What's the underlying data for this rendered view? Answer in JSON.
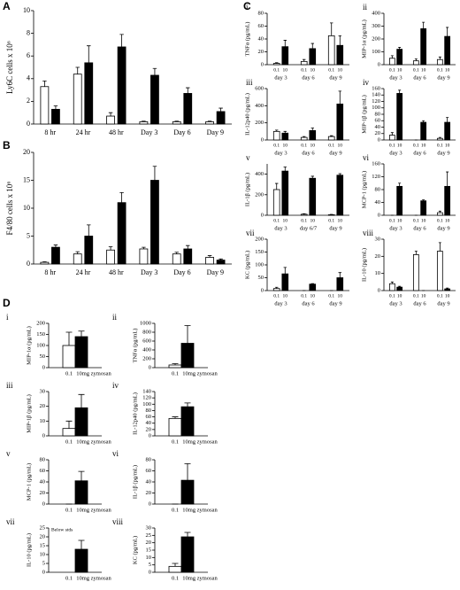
{
  "panel_letters": [
    "A",
    "B",
    "C",
    "D"
  ],
  "chart_data": [
    {
      "type": "bar",
      "ylabel": "Ly6C cells x 10⁶",
      "categories": [
        "8 hr",
        "24 hr",
        "48 hr",
        "Day 3",
        "Day 6",
        "Day 9"
      ],
      "ylim": [
        0,
        10
      ],
      "yticks": [
        0,
        2,
        4,
        6,
        8,
        10
      ],
      "series": [
        {
          "color": "#ffffff",
          "values": [
            3.3,
            4.4,
            0.7,
            0.2,
            0.2,
            0.2
          ],
          "errors": [
            0.5,
            0.6,
            0.3,
            0.05,
            0.05,
            0.05
          ]
        },
        {
          "color": "#000000",
          "values": [
            1.3,
            5.4,
            6.8,
            4.3,
            2.7,
            1.1
          ],
          "errors": [
            0.3,
            1.5,
            1.1,
            0.6,
            0.5,
            0.3
          ]
        }
      ]
    },
    {
      "type": "bar",
      "ylabel": "F4/80 cells x 10⁶",
      "categories": [
        "8 hr",
        "24 hr",
        "48 hr",
        "Day 3",
        "Day 6",
        "Day 9"
      ],
      "ylim": [
        0,
        20
      ],
      "yticks": [
        0,
        5,
        10,
        15,
        20
      ],
      "series": [
        {
          "color": "#ffffff",
          "values": [
            0.3,
            1.8,
            2.5,
            2.7,
            1.8,
            1.2
          ],
          "errors": [
            0.1,
            0.4,
            0.6,
            0.3,
            0.3,
            0.3
          ]
        },
        {
          "color": "#000000",
          "values": [
            3.0,
            5.0,
            11.0,
            15.0,
            2.7,
            0.7
          ],
          "errors": [
            0.4,
            2.0,
            1.8,
            2.5,
            0.6,
            0.2
          ]
        }
      ]
    },
    {
      "type": "bar",
      "label": "i",
      "ylabel": "TNFα (pg/mL)",
      "categories": [
        "day 3",
        "day 6",
        "day 9"
      ],
      "ylim": [
        0,
        80
      ],
      "yticks": [
        0,
        20,
        40,
        60,
        80
      ],
      "series": [
        {
          "name": "0.1",
          "color": "#ffffff",
          "values": [
            2,
            5,
            45
          ],
          "errors": [
            1,
            3,
            20
          ]
        },
        {
          "name": "10",
          "color": "#000000",
          "values": [
            28,
            25,
            30
          ],
          "errors": [
            10,
            8,
            15
          ]
        }
      ]
    },
    {
      "type": "bar",
      "label": "ii",
      "ylabel": "MIP-1α (pg/mL)",
      "categories": [
        "day 3",
        "day 6",
        "day 9"
      ],
      "ylim": [
        0,
        400
      ],
      "yticks": [
        0,
        100,
        200,
        300,
        400
      ],
      "series": [
        {
          "name": "0.1",
          "color": "#ffffff",
          "values": [
            50,
            30,
            40
          ],
          "errors": [
            20,
            15,
            20
          ]
        },
        {
          "name": "10",
          "color": "#000000",
          "values": [
            120,
            280,
            220
          ],
          "errors": [
            15,
            50,
            70
          ]
        }
      ]
    },
    {
      "type": "bar",
      "label": "iii",
      "ylabel": "IL-12p40 (pg/mL)",
      "categories": [
        "day 3",
        "day 6",
        "day 9"
      ],
      "ylim": [
        0,
        600
      ],
      "yticks": [
        0,
        200,
        400,
        600
      ],
      "series": [
        {
          "name": "0.1",
          "color": "#ffffff",
          "values": [
            100,
            30,
            40
          ],
          "errors": [
            15,
            10,
            10
          ]
        },
        {
          "name": "10",
          "color": "#000000",
          "values": [
            80,
            110,
            420
          ],
          "errors": [
            20,
            30,
            150
          ]
        }
      ]
    },
    {
      "type": "bar",
      "label": "iv",
      "ylabel": "MIP-1β (pg/mL)",
      "categories": [
        "day 3",
        "day 6",
        "day 9"
      ],
      "ylim": [
        0,
        160
      ],
      "yticks": [
        0,
        20,
        40,
        60,
        80,
        100,
        120,
        140,
        160
      ],
      "series": [
        {
          "name": "0.1",
          "color": "#ffffff",
          "values": [
            15,
            0,
            5
          ],
          "errors": [
            8,
            0,
            3
          ]
        },
        {
          "name": "10",
          "color": "#000000",
          "values": [
            145,
            55,
            55
          ],
          "errors": [
            10,
            5,
            15
          ]
        }
      ]
    },
    {
      "type": "bar",
      "label": "v",
      "ylabel": "IL-1β (pg/mL)",
      "categories": [
        "day 3",
        "day 6/7",
        "day 9"
      ],
      "ylim": [
        0,
        500
      ],
      "yticks": [
        0,
        200,
        400
      ],
      "series": [
        {
          "name": "0.1",
          "color": "#ffffff",
          "values": [
            250,
            10,
            5
          ],
          "errors": [
            60,
            5,
            3
          ]
        },
        {
          "name": "10",
          "color": "#000000",
          "values": [
            430,
            360,
            390
          ],
          "errors": [
            40,
            20,
            15
          ]
        }
      ]
    },
    {
      "type": "bar",
      "label": "vi",
      "ylabel": "MCP-1 (pg/mL)",
      "categories": [
        "day 3",
        "day 6",
        "day 9"
      ],
      "ylim": [
        0,
        160
      ],
      "yticks": [
        0,
        40,
        80,
        120,
        160
      ],
      "series": [
        {
          "name": "0.1",
          "color": "#ffffff",
          "values": [
            0,
            0,
            8
          ],
          "errors": [
            0,
            0,
            5
          ]
        },
        {
          "name": "10",
          "color": "#000000",
          "values": [
            90,
            45,
            90
          ],
          "errors": [
            10,
            3,
            45
          ]
        }
      ]
    },
    {
      "type": "bar",
      "label": "vii",
      "ylabel": "KC (pg/mL)",
      "categories": [
        "day 3",
        "day 6",
        "day 9"
      ],
      "ylim": [
        0,
        200
      ],
      "yticks": [
        0,
        50,
        100,
        150,
        200
      ],
      "series": [
        {
          "name": "0.1",
          "color": "#ffffff",
          "values": [
            8,
            0,
            0
          ],
          "errors": [
            5,
            0,
            0
          ]
        },
        {
          "name": "10",
          "color": "#000000",
          "values": [
            65,
            25,
            50
          ],
          "errors": [
            25,
            2,
            20
          ]
        }
      ]
    },
    {
      "type": "bar",
      "label": "viii",
      "ylabel": "IL-10 (pg/mL)",
      "categories": [
        "day 3",
        "day 6",
        "day 9"
      ],
      "ylim": [
        0,
        30
      ],
      "yticks": [
        0,
        10,
        20,
        30
      ],
      "series": [
        {
          "name": "0.1",
          "color": "#ffffff",
          "values": [
            4,
            21,
            23
          ],
          "errors": [
            1,
            2,
            5
          ]
        },
        {
          "name": "10",
          "color": "#000000",
          "values": [
            2,
            0,
            1
          ],
          "errors": [
            0.5,
            0,
            0.5
          ]
        }
      ]
    },
    {
      "type": "bar",
      "label": "i",
      "ylabel": "MIP-1α (pg/mL)",
      "categories": [
        "0.1",
        "10mg zymosan"
      ],
      "colors": [
        "#ffffff",
        "#000000"
      ],
      "values": [
        100,
        140
      ],
      "errors": [
        60,
        25
      ],
      "ylim": [
        0,
        200
      ],
      "yticks": [
        0,
        50,
        100,
        150,
        200
      ]
    },
    {
      "type": "bar",
      "label": "ii",
      "ylabel": "TNFα (pg/mL)",
      "categories": [
        "0.1",
        "10mg zymosan"
      ],
      "colors": [
        "#ffffff",
        "#000000"
      ],
      "values": [
        60,
        550
      ],
      "errors": [
        30,
        400
      ],
      "ylim": [
        0,
        1000
      ],
      "yticks": [
        0,
        200,
        400,
        600,
        800,
        1000
      ]
    },
    {
      "type": "bar",
      "label": "iii",
      "ylabel": "MIP-1β (pg/mL)",
      "categories": [
        "0.1",
        "10mg zymosan"
      ],
      "colors": [
        "#ffffff",
        "#000000"
      ],
      "values": [
        5,
        19
      ],
      "errors": [
        5,
        9
      ],
      "ylim": [
        0,
        30
      ],
      "yticks": [
        0,
        10,
        20,
        30
      ]
    },
    {
      "type": "bar",
      "label": "iv",
      "ylabel": "IL-12p40 (pg/mL)",
      "categories": [
        "0.1",
        "10mg zymosan"
      ],
      "colors": [
        "#ffffff",
        "#000000"
      ],
      "values": [
        55,
        92
      ],
      "errors": [
        5,
        12
      ],
      "ylim": [
        0,
        140
      ],
      "yticks": [
        0,
        20,
        40,
        60,
        80,
        100,
        120,
        140
      ]
    },
    {
      "type": "bar",
      "label": "v",
      "ylabel": "MCP-1 (pg/mL)",
      "categories": [
        "0.1",
        "10mg zymosan"
      ],
      "colors": [
        "#ffffff",
        "#000000"
      ],
      "values": [
        0,
        42
      ],
      "errors": [
        0,
        17
      ],
      "ylim": [
        0,
        80
      ],
      "yticks": [
        0,
        20,
        40,
        60,
        80
      ]
    },
    {
      "type": "bar",
      "label": "vi",
      "ylabel": "IL-1β (pg/mL)",
      "categories": [
        "0.1",
        "10mg zymosan"
      ],
      "colors": [
        "#ffffff",
        "#000000"
      ],
      "values": [
        0,
        43
      ],
      "errors": [
        0,
        30
      ],
      "ylim": [
        0,
        80
      ],
      "yticks": [
        0,
        20,
        40,
        60,
        80
      ]
    },
    {
      "type": "bar",
      "label": "vii",
      "ylabel": "IL-10 (pg/mL)",
      "annotation": "Below stds",
      "categories": [
        "0.1",
        "10mg zymosan"
      ],
      "colors": [
        "#ffffff",
        "#000000"
      ],
      "values": [
        null,
        13
      ],
      "errors": [
        null,
        5
      ],
      "ylim": [
        0,
        25
      ],
      "yticks": [
        0,
        5,
        10,
        15,
        20,
        25
      ]
    },
    {
      "type": "bar",
      "label": "viii",
      "ylabel": "KC (pg/mL)",
      "categories": [
        "0.1",
        "10mg zymosan"
      ],
      "colors": [
        "#ffffff",
        "#000000"
      ],
      "values": [
        4,
        24
      ],
      "errors": [
        2,
        3
      ],
      "ylim": [
        0,
        30
      ],
      "yticks": [
        0,
        5,
        10,
        15,
        20,
        25,
        30
      ]
    }
  ]
}
